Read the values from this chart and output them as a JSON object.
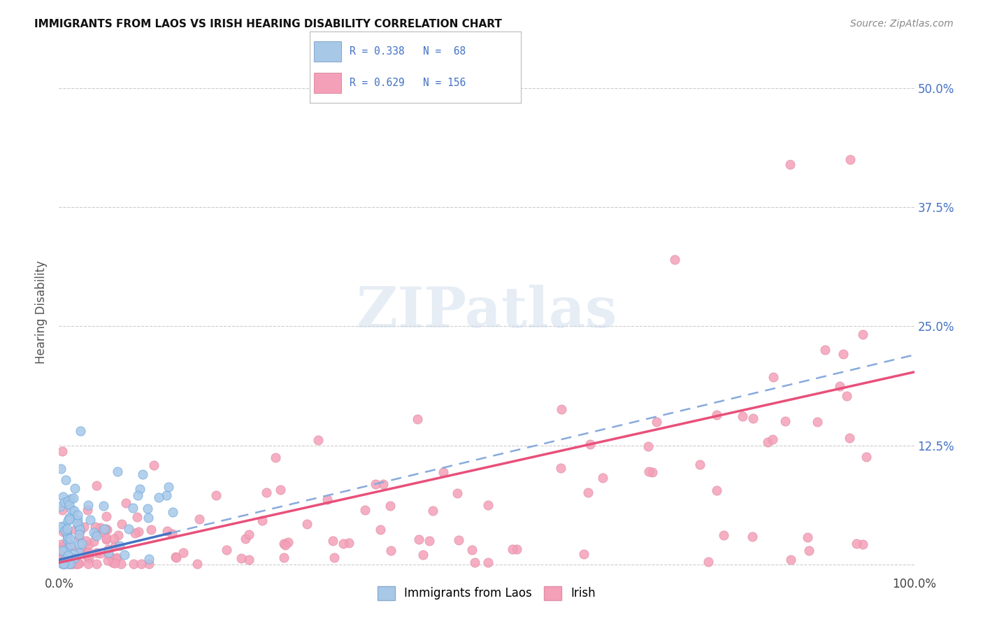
{
  "title": "IMMIGRANTS FROM LAOS VS IRISH HEARING DISABILITY CORRELATION CHART",
  "source": "Source: ZipAtlas.com",
  "ylabel": "Hearing Disability",
  "legend_label1": "Immigrants from Laos",
  "legend_label2": "Irish",
  "R1": 0.338,
  "N1": 68,
  "R2": 0.629,
  "N2": 156,
  "xlim": [
    0.0,
    1.0
  ],
  "ylim": [
    -0.01,
    0.54
  ],
  "ytick_positions": [
    0.0,
    0.125,
    0.25,
    0.375,
    0.5
  ],
  "ytick_labels_right": [
    "",
    "12.5%",
    "25.0%",
    "37.5%",
    "50.0%"
  ],
  "color1": "#a8c8e8",
  "color2": "#f4a0b8",
  "trend_color1": "#4472c4",
  "trend_color2": "#e8507a",
  "background_color": "#ffffff",
  "watermark": "ZIPatlas",
  "seed": 123
}
